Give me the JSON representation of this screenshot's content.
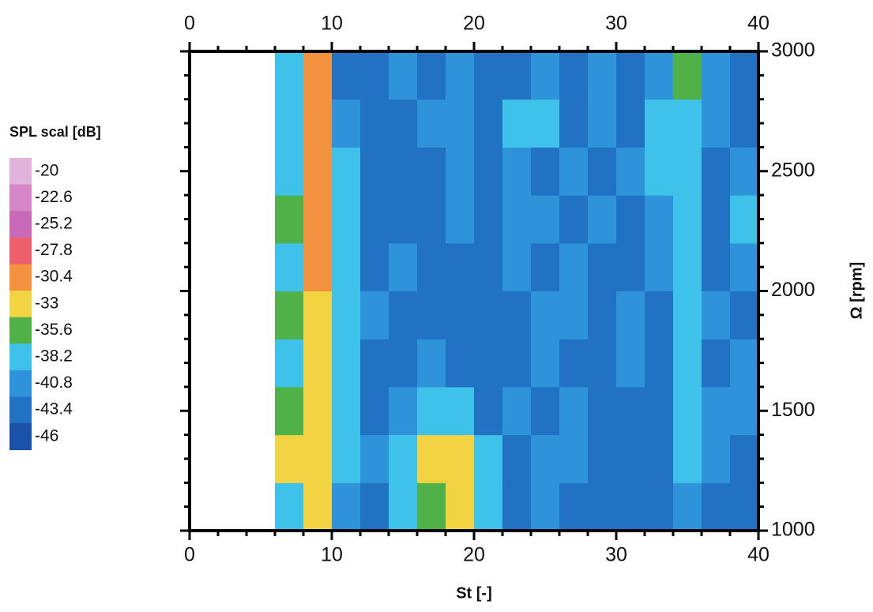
{
  "chart_data": {
    "type": "contour",
    "legend_title": "SPL scal [dB]",
    "xlabel": "St [-]",
    "ylabel": "Ω [rpm]",
    "xlim": [
      0,
      40
    ],
    "ylim": [
      1000,
      3000
    ],
    "xticks": [
      0,
      10,
      20,
      30,
      40
    ],
    "yticks": [
      1000,
      1500,
      2000,
      2500,
      3000
    ],
    "xminorticks": [
      2,
      4,
      6,
      8,
      12,
      14,
      16,
      18,
      22,
      24,
      26,
      28,
      32,
      34,
      36,
      38
    ],
    "yminorticks": [
      1100,
      1200,
      1300,
      1400,
      1600,
      1700,
      1800,
      1900,
      2100,
      2200,
      2300,
      2400,
      2600,
      2700,
      2800,
      2900
    ],
    "levels": [
      -20,
      -22.6,
      -25.2,
      -27.8,
      -30.4,
      -33,
      -35.6,
      -38.2,
      -40.8,
      -43.4,
      -46
    ],
    "colors": [
      "#e2b4dc",
      "#d486c8",
      "#c86ab8",
      "#ee5f6e",
      "#f2923e",
      "#f2d443",
      "#4fb148",
      "#3fc2ea",
      "#2f93da",
      "#2172c2",
      "#1a52a8"
    ],
    "x": [
      7,
      9,
      11,
      13,
      15,
      17,
      19,
      21,
      23,
      25,
      27,
      29,
      31,
      33,
      35,
      37,
      39
    ],
    "y": [
      1100,
      1300,
      1500,
      1700,
      1900,
      2100,
      2300,
      2500,
      2700,
      2900
    ],
    "z": [
      [
        -38,
        -33,
        -40,
        -41,
        -38,
        -35,
        -33,
        -38,
        -41,
        -40,
        -41,
        -43,
        -41,
        -43,
        -40,
        -41,
        -41
      ],
      [
        -33,
        -32,
        -38,
        -40,
        -37,
        -33,
        -32,
        -38,
        -41,
        -40,
        -40,
        -41,
        -43,
        -41,
        -38,
        -40,
        -41
      ],
      [
        -35,
        -33,
        -38,
        -41,
        -40,
        -36,
        -38,
        -41,
        -40,
        -41,
        -40,
        -41,
        -41,
        -43,
        -38,
        -40,
        -40
      ],
      [
        -38,
        -33,
        -38,
        -41,
        -41,
        -40,
        -41,
        -43,
        -41,
        -40,
        -41,
        -41,
        -40,
        -41,
        -38,
        -41,
        -40
      ],
      [
        -35,
        -31,
        -36,
        -40,
        -41,
        -41,
        -43,
        -41,
        -41,
        -40,
        -40,
        -41,
        -40,
        -41,
        -38,
        -40,
        -41
      ],
      [
        -36,
        -30,
        -37,
        -41,
        -40,
        -43,
        -41,
        -41,
        -40,
        -41,
        -40,
        -41,
        -41,
        -40,
        -38,
        -41,
        -40
      ],
      [
        -35,
        -29,
        -36,
        -41,
        -43,
        -41,
        -40,
        -41,
        -40,
        -40,
        -41,
        -40,
        -41,
        -40,
        -36,
        -41,
        -38
      ],
      [
        -36,
        -28,
        -37,
        -43,
        -41,
        -41,
        -40,
        -41,
        -40,
        -41,
        -40,
        -41,
        -40,
        -38,
        -36,
        -41,
        -40
      ],
      [
        -36,
        -29,
        -40,
        -43,
        -41,
        -40,
        -40,
        -41,
        -38,
        -36,
        -41,
        -40,
        -41,
        -37,
        -36,
        -40,
        -41
      ],
      [
        -38,
        -30,
        -41,
        -41,
        -40,
        -41,
        -40,
        -41,
        -41,
        -40,
        -41,
        -40,
        -41,
        -40,
        -35,
        -40,
        -41
      ]
    ]
  }
}
